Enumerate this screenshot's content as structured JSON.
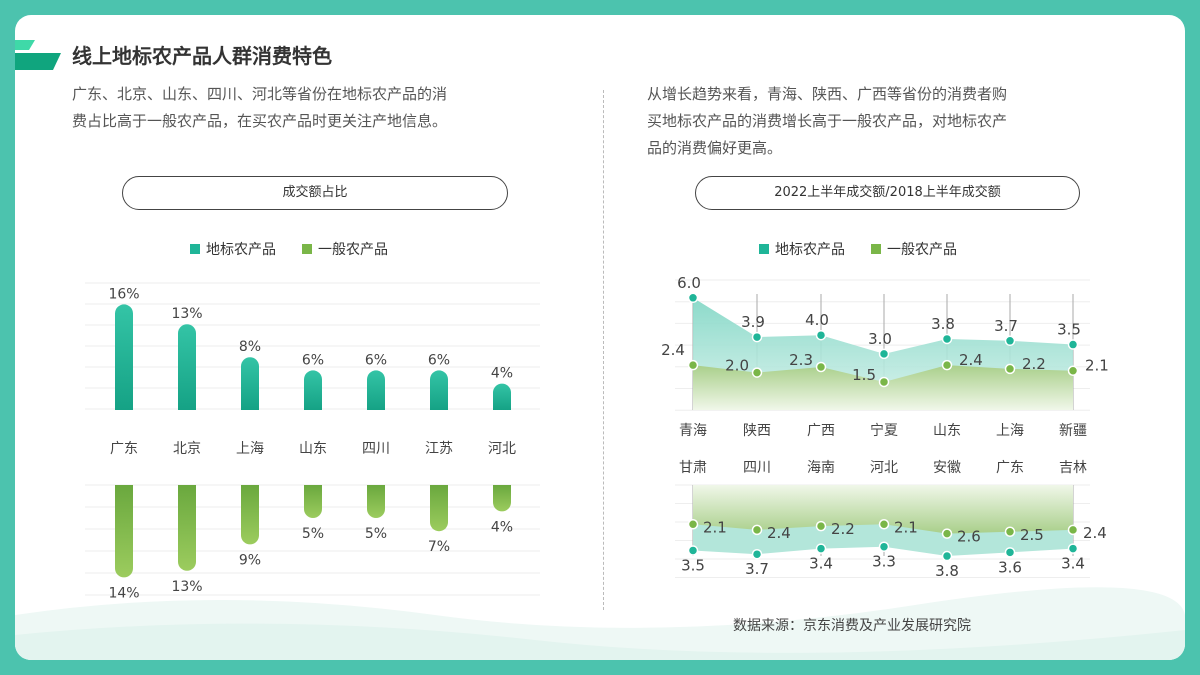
{
  "title": "线上地标农产品人群消费特色",
  "left_text": [
    "广东、北京、山东、四川、河北等省份在地标农产品的消",
    "费占比高于一般农产品，在买农产品时更关注产地信息。"
  ],
  "right_text": [
    "从增长趋势来看，青海、陕西、广西等省份的消费者购",
    "买地标农产品的消费增长高于一般农产品，对地标农产",
    "品的消费偏好更高。"
  ],
  "source": "数据来源：京东消费及产业发展研究院",
  "colors": {
    "geo": "#1fb598",
    "general": "#7ab648",
    "frame": "#4cc3ae"
  },
  "chart_data": [
    {
      "type": "bar",
      "title": "成交额占比",
      "legend": [
        "地标农产品",
        "一般农产品"
      ],
      "categories": [
        "广东",
        "北京",
        "上海",
        "山东",
        "四川",
        "江苏",
        "河北"
      ],
      "series": [
        {
          "name": "地标农产品",
          "values": [
            16,
            13,
            8,
            6,
            6,
            6,
            4
          ],
          "labels": [
            "16%",
            "13%",
            "8%",
            "6%",
            "6%",
            "6%",
            "4%"
          ]
        },
        {
          "name": "一般农产品",
          "values": [
            14,
            13,
            9,
            5,
            5,
            7,
            4
          ],
          "labels": [
            "14%",
            "13%",
            "9%",
            "5%",
            "5%",
            "7%",
            "4%"
          ]
        }
      ]
    },
    {
      "type": "area",
      "title": "2022上半年成交额/2018上半年成交额",
      "legend": [
        "地标农产品",
        "一般农产品"
      ],
      "panels": [
        {
          "categories": [
            "青海",
            "陕西",
            "广西",
            "宁夏",
            "山东",
            "上海",
            "新疆"
          ],
          "series": [
            {
              "name": "地标农产品",
              "values": [
                6.0,
                3.9,
                4.0,
                3.0,
                3.8,
                3.7,
                3.5
              ]
            },
            {
              "name": "一般农产品",
              "values": [
                2.4,
                2.0,
                2.3,
                1.5,
                2.4,
                2.2,
                2.1
              ]
            }
          ]
        },
        {
          "categories": [
            "甘肃",
            "四川",
            "海南",
            "河北",
            "安徽",
            "广东",
            "吉林"
          ],
          "series": [
            {
              "name": "地标农产品",
              "values": [
                3.5,
                3.7,
                3.4,
                3.3,
                3.8,
                3.6,
                3.4
              ]
            },
            {
              "name": "一般农产品",
              "values": [
                2.1,
                2.4,
                2.2,
                2.1,
                2.6,
                2.5,
                2.4
              ]
            }
          ]
        }
      ]
    }
  ]
}
